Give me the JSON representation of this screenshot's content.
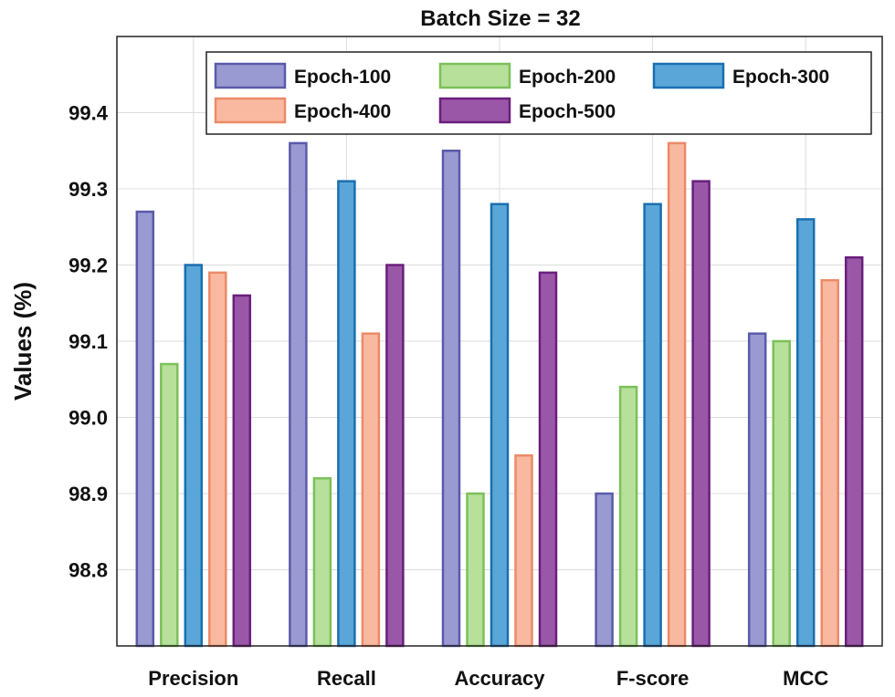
{
  "chart_data": {
    "type": "bar",
    "title": "Batch Size = 32",
    "xlabel": "",
    "ylabel": "Values (%)",
    "ylim": [
      98.7,
      99.5
    ],
    "yticks": [
      "98.8",
      "98.9",
      "99.0",
      "99.1",
      "99.2",
      "99.3",
      "99.4"
    ],
    "grid": true,
    "legend_position": "top",
    "categories": [
      "Precision",
      "Recall",
      "Accuracy",
      "F-score",
      "MCC"
    ],
    "series": [
      {
        "name": "Epoch-100",
        "fill": "#9a9ad2",
        "stroke": "#5a5aaa",
        "values": [
          99.27,
          99.36,
          99.35,
          98.9,
          99.11
        ]
      },
      {
        "name": "Epoch-200",
        "fill": "#b7e09a",
        "stroke": "#7cc05a",
        "values": [
          99.07,
          98.92,
          98.9,
          99.04,
          99.1
        ]
      },
      {
        "name": "Epoch-300",
        "fill": "#5aa6d8",
        "stroke": "#1a6fb0",
        "values": [
          99.2,
          99.31,
          99.28,
          99.28,
          99.26
        ]
      },
      {
        "name": "Epoch-400",
        "fill": "#f8b9a0",
        "stroke": "#ec8a68",
        "values": [
          99.19,
          99.11,
          98.95,
          99.36,
          99.18
        ]
      },
      {
        "name": "Epoch-500",
        "fill": "#9a57a8",
        "stroke": "#6a1f7c",
        "values": [
          99.16,
          99.2,
          99.19,
          99.31,
          99.21
        ]
      }
    ]
  }
}
